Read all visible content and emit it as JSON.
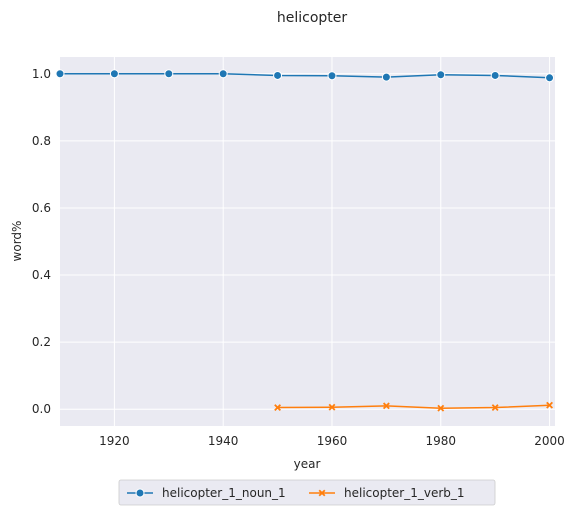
{
  "chart_data": {
    "type": "line",
    "title": "helicopter",
    "xlabel": "year",
    "ylabel": "word%",
    "xlim": [
      1910,
      2001
    ],
    "ylim": [
      -0.05,
      1.05
    ],
    "x_ticks": [
      "1920",
      "1940",
      "1960",
      "1980",
      "2000"
    ],
    "y_ticks": [
      "0.0",
      "0.2",
      "0.4",
      "0.6",
      "0.8",
      "1.0"
    ],
    "grid": true,
    "background": "#eaeaf2",
    "legend_position": "bottom-center",
    "series": [
      {
        "name": "helicopter_1_noun_1",
        "color": "#1f77b4",
        "marker": "circle",
        "x": [
          1910,
          1920,
          1930,
          1940,
          1950,
          1960,
          1970,
          1980,
          1990,
          2000
        ],
        "y": [
          1.0,
          1.0,
          1.0,
          1.0,
          0.995,
          0.994,
          0.99,
          0.997,
          0.995,
          0.988
        ]
      },
      {
        "name": "helicopter_1_verb_1",
        "color": "#ff7f0e",
        "marker": "x",
        "x": [
          1950,
          1960,
          1970,
          1980,
          1990,
          2000
        ],
        "y": [
          0.005,
          0.006,
          0.01,
          0.003,
          0.005,
          0.012
        ]
      }
    ]
  }
}
